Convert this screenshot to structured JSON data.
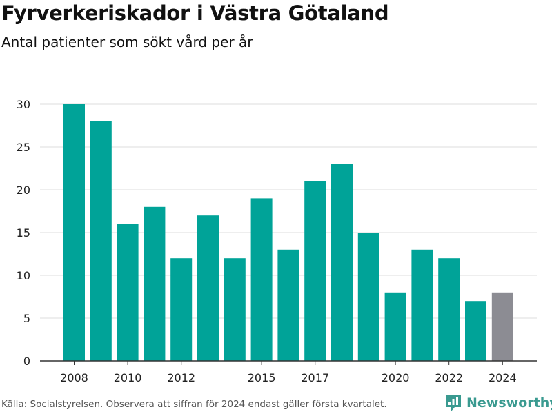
{
  "header": {
    "title": "Fyrverkeriskador i Västra Götaland",
    "subtitle": "Antal patienter som sökt vård per år"
  },
  "footer": {
    "source": "Källa: Socialstyrelsen. Observera att siffran för 2024 endast gäller första kvartalet.",
    "brand": "Newsworthy",
    "brand_icon": "newsworthy-logo-icon"
  },
  "colors": {
    "bar": "#00a398",
    "bar_highlight": "#8c8c93",
    "grid": "#dddddd",
    "axis": "#333333",
    "brand": "#3a9a90"
  },
  "chart_data": {
    "type": "bar",
    "title": "Fyrverkeriskador i Västra Götaland",
    "subtitle": "Antal patienter som sökt vård per år",
    "categories": [
      2008,
      2009,
      2010,
      2011,
      2012,
      2013,
      2014,
      2015,
      2016,
      2017,
      2018,
      2019,
      2020,
      2021,
      2022,
      2023,
      2024
    ],
    "values": [
      30,
      28,
      16,
      18,
      12,
      17,
      12,
      19,
      13,
      21,
      23,
      15,
      8,
      13,
      12,
      7,
      8
    ],
    "highlight_category": 2024,
    "x_tick_labels": [
      "2008",
      "2010",
      "2012",
      "2015",
      "2017",
      "2020",
      "2022",
      "2024"
    ],
    "y_ticks": [
      0,
      5,
      10,
      15,
      20,
      25,
      30
    ],
    "ylim": [
      0,
      30
    ],
    "xlabel": "",
    "ylabel": "",
    "grid": true,
    "legend": false
  }
}
